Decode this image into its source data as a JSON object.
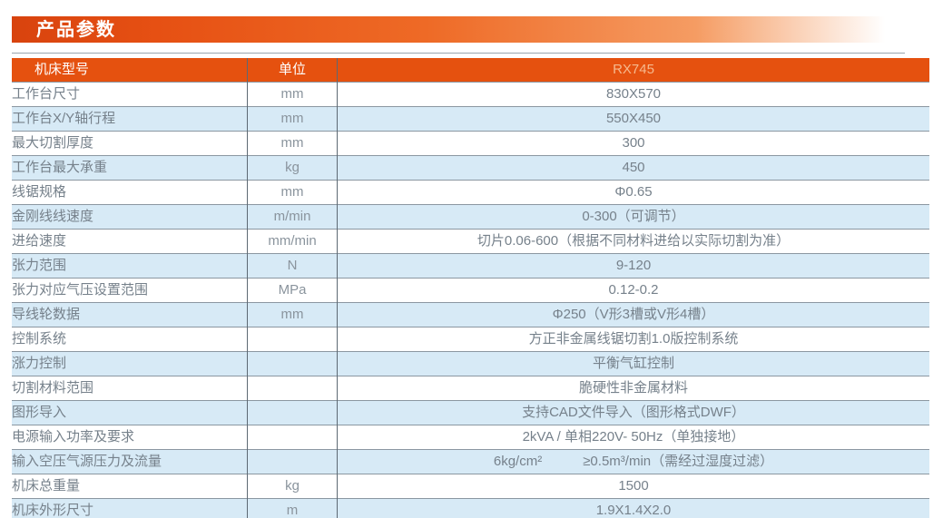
{
  "banner": {
    "title": "产品参数"
  },
  "colors": {
    "banner_orange_start": "#d8430e",
    "banner_orange_mid": "#ee6a26",
    "header_orange": "#e5510f",
    "header_model_value_text": "#f6b98e",
    "alt_row_blue": "#d7eaf6",
    "body_text_gray": "#76818b",
    "grid_line": "#8b97a1"
  },
  "table": {
    "header": {
      "model_label": "机床型号",
      "unit_label": "单位",
      "model_value": "RX745"
    },
    "rows": [
      {
        "label": "工作台尺寸",
        "unit": "mm",
        "value": "830X570"
      },
      {
        "label": "工作台X/Y轴行程",
        "unit": "mm",
        "value": "550X450"
      },
      {
        "label": "最大切割厚度",
        "unit": "mm",
        "value": "300"
      },
      {
        "label": "工作台最大承重",
        "unit": "kg",
        "value": "450"
      },
      {
        "label": "线锯规格",
        "unit": "mm",
        "value": "Φ0.65"
      },
      {
        "label": "金刚线线速度",
        "unit": "m/min",
        "value": "0-300（可调节）"
      },
      {
        "label": "进给速度",
        "unit": "mm/min",
        "value": "切片0.06-600（根据不同材料进给以实际切割为准）"
      },
      {
        "label": "张力范围",
        "unit": "N",
        "value": "9-120"
      },
      {
        "label": "张力对应气压设置范围",
        "unit": "MPa",
        "value": "0.12-0.2"
      },
      {
        "label": "导线轮数据",
        "unit": "mm",
        "value": "Φ250（V形3槽或V形4槽）"
      },
      {
        "label": "控制系统",
        "unit": "",
        "value": "方正非金属线锯切割1.0版控制系统"
      },
      {
        "label": "涨力控制",
        "unit": "",
        "value": "平衡气缸控制"
      },
      {
        "label": "切割材料范围",
        "unit": "",
        "value": "脆硬性非金属材料"
      },
      {
        "label": "图形导入",
        "unit": "",
        "value": "支持CAD文件导入（图形格式DWF）"
      },
      {
        "label": "电源输入功率及要求",
        "unit": "",
        "value": "2kVA / 单相220V- 50Hz（单独接地）"
      },
      {
        "label": "输入空压气源压力及流量",
        "unit": "",
        "value": "6kg/cm²　　　≥0.5m³/min（需经过湿度过滤）"
      },
      {
        "label": "机床总重量",
        "unit": "kg",
        "value": "1500"
      },
      {
        "label": "机床外形尺寸",
        "unit": "m",
        "value": "1.9X1.4X2.0"
      }
    ]
  }
}
